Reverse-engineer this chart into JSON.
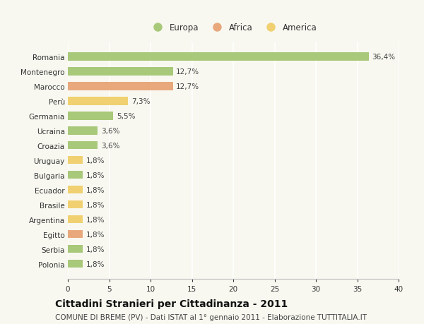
{
  "categories": [
    "Romania",
    "Montenegro",
    "Marocco",
    "Perù",
    "Germania",
    "Ucraina",
    "Croazia",
    "Uruguay",
    "Bulgaria",
    "Ecuador",
    "Brasile",
    "Argentina",
    "Egitto",
    "Serbia",
    "Polonia"
  ],
  "values": [
    36.4,
    12.7,
    12.7,
    7.3,
    5.5,
    3.6,
    3.6,
    1.8,
    1.8,
    1.8,
    1.8,
    1.8,
    1.8,
    1.8,
    1.8
  ],
  "labels": [
    "36,4%",
    "12,7%",
    "12,7%",
    "7,3%",
    "5,5%",
    "3,6%",
    "3,6%",
    "1,8%",
    "1,8%",
    "1,8%",
    "1,8%",
    "1,8%",
    "1,8%",
    "1,8%",
    "1,8%"
  ],
  "continents": [
    "Europa",
    "Europa",
    "Africa",
    "America",
    "Europa",
    "Europa",
    "Europa",
    "America",
    "Europa",
    "America",
    "America",
    "America",
    "Africa",
    "Europa",
    "Europa"
  ],
  "colors": {
    "Europa": "#a8c87a",
    "Africa": "#e8a87c",
    "America": "#f0d070"
  },
  "title": "Cittadini Stranieri per Cittadinanza - 2011",
  "subtitle": "COMUNE DI BREME (PV) - Dati ISTAT al 1° gennaio 2011 - Elaborazione TUTTITALIA.IT",
  "xlim": [
    0,
    40
  ],
  "background_color": "#f8f8f0",
  "grid_color": "#ffffff",
  "bar_height": 0.55,
  "title_fontsize": 10,
  "subtitle_fontsize": 7.5,
  "label_fontsize": 7.5,
  "tick_fontsize": 7.5,
  "legend_fontsize": 8.5
}
